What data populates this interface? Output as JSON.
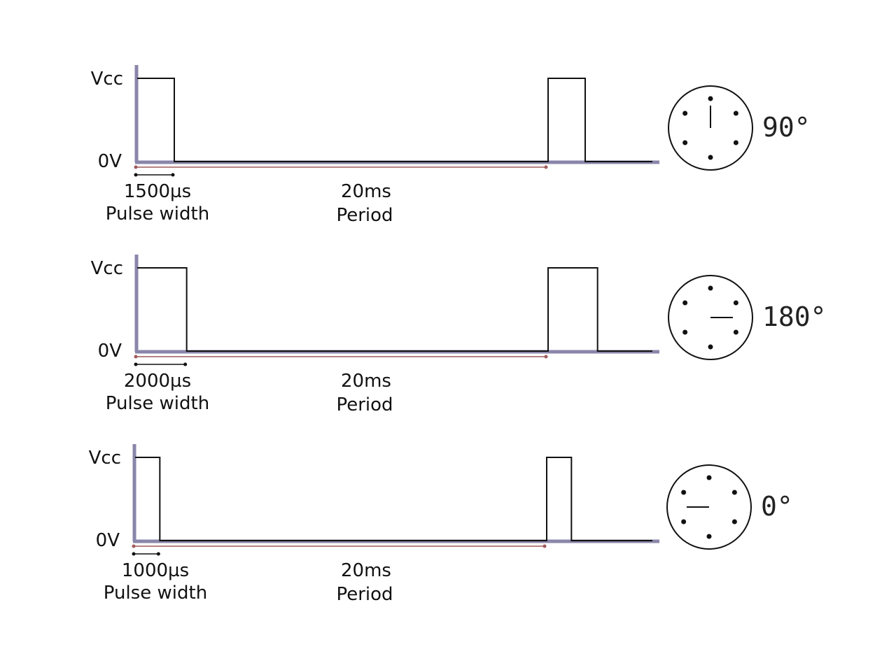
{
  "colors": {
    "axis": "#8a86aa",
    "signal": "#111111",
    "period_marker": "#a05a5a",
    "width_marker": "#111111",
    "dial": "#111111"
  },
  "labels": {
    "high": "Vcc",
    "low": "0V",
    "pulse_caption": "Pulse width",
    "period_caption": "Period",
    "period_value": "20ms"
  },
  "panels": [
    {
      "pulse_width": "1500µs",
      "pulse_us": 1500,
      "angle": "90°",
      "angle_deg": 90
    },
    {
      "pulse_width": "2000µs",
      "pulse_us": 2000,
      "angle": "180°",
      "angle_deg": 180
    },
    {
      "pulse_width": "1000µs",
      "pulse_us": 1000,
      "angle": "0°",
      "angle_deg": 0
    }
  ]
}
